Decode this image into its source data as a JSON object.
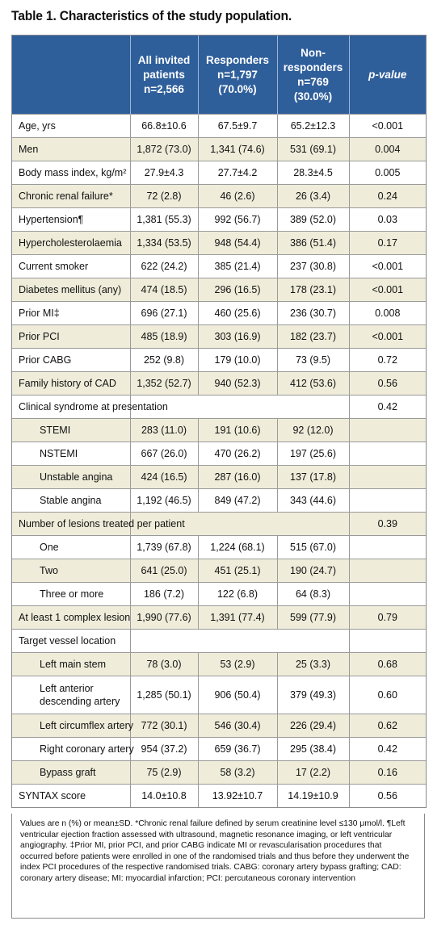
{
  "title": "Table 1. Characteristics of the study population.",
  "header": {
    "col0": "",
    "col1": [
      "All invited",
      "patients",
      "n=2,566"
    ],
    "col2": [
      "Responders",
      "n=1,797",
      "(70.0%)"
    ],
    "col3": [
      "Non-",
      "responders",
      "n=769",
      "(30.0%)"
    ],
    "col4": "p-value"
  },
  "rows": [
    {
      "label": "Age, yrs",
      "all": "66.8±10.6",
      "resp": "67.5±9.7",
      "nonresp": "65.2±12.3",
      "p": "<0.001"
    },
    {
      "label": "Men",
      "all": "1,872 (73.0)",
      "resp": "1,341 (74.6)",
      "nonresp": "531 (69.1)",
      "p": "0.004"
    },
    {
      "label": "Body mass index, kg/m²",
      "all": "27.9±4.3",
      "resp": "27.7±4.2",
      "nonresp": "28.3±4.5",
      "p": "0.005"
    },
    {
      "label": "Chronic renal failure*",
      "all": "72 (2.8)",
      "resp": "46 (2.6)",
      "nonresp": "26 (3.4)",
      "p": "0.24"
    },
    {
      "label": "Hypertension¶",
      "all": "1,381 (55.3)",
      "resp": "992 (56.7)",
      "nonresp": "389 (52.0)",
      "p": "0.03"
    },
    {
      "label": "Hypercholesterolaemia",
      "all": "1,334 (53.5)",
      "resp": "948 (54.4)",
      "nonresp": "386 (51.4)",
      "p": "0.17"
    },
    {
      "label": "Current smoker",
      "all": "622 (24.2)",
      "resp": "385 (21.4)",
      "nonresp": "237 (30.8)",
      "p": "<0.001"
    },
    {
      "label": "Diabetes mellitus (any)",
      "all": "474 (18.5)",
      "resp": "296 (16.5)",
      "nonresp": "178 (23.1)",
      "p": "<0.001"
    },
    {
      "label": "Prior MI‡",
      "all": "696 (27.1)",
      "resp": "460 (25.6)",
      "nonresp": "236 (30.7)",
      "p": "0.008"
    },
    {
      "label": "Prior PCI",
      "all": "485 (18.9)",
      "resp": "303 (16.9)",
      "nonresp": "182 (23.7)",
      "p": "<0.001"
    },
    {
      "label": "Prior CABG",
      "all": "252 (9.8)",
      "resp": "179 (10.0)",
      "nonresp": "73 (9.5)",
      "p": "0.72"
    },
    {
      "label": "Family history of CAD",
      "all": "1,352 (52.7)",
      "resp": "940 (52.3)",
      "nonresp": "412 (53.6)",
      "p": "0.56"
    },
    {
      "label": "Clinical syndrome at presentation",
      "span": true,
      "p": "0.42"
    },
    {
      "label": "STEMI",
      "sub": true,
      "all": "283 (11.0)",
      "resp": "191 (10.6)",
      "nonresp": "92 (12.0)",
      "p": ""
    },
    {
      "label": "NSTEMI",
      "sub": true,
      "all": "667 (26.0)",
      "resp": "470 (26.2)",
      "nonresp": "197 (25.6)",
      "p": ""
    },
    {
      "label": "Unstable angina",
      "sub": true,
      "all": "424 (16.5)",
      "resp": "287 (16.0)",
      "nonresp": "137 (17.8)",
      "p": ""
    },
    {
      "label": "Stable angina",
      "sub": true,
      "all": "1,192 (46.5)",
      "resp": "849 (47.2)",
      "nonresp": "343 (44.6)",
      "p": ""
    },
    {
      "label": "Number of lesions treated per patient",
      "span": true,
      "p": "0.39"
    },
    {
      "label": "One",
      "sub": true,
      "all": "1,739 (67.8)",
      "resp": "1,224 (68.1)",
      "nonresp": "515 (67.0)",
      "p": ""
    },
    {
      "label": "Two",
      "sub": true,
      "all": "641 (25.0)",
      "resp": "451 (25.1)",
      "nonresp": "190 (24.7)",
      "p": ""
    },
    {
      "label": "Three or more",
      "sub": true,
      "all": "186 (7.2)",
      "resp": "122 (6.8)",
      "nonresp": "64 (8.3)",
      "p": ""
    },
    {
      "label": "At least 1 complex lesion",
      "all": "1,990 (77.6)",
      "resp": "1,391 (77.4)",
      "nonresp": "599 (77.9)",
      "p": "0.79"
    },
    {
      "label": "Target vessel location",
      "span": true,
      "p": ""
    },
    {
      "label": "Left main stem",
      "sub": true,
      "all": "78 (3.0)",
      "resp": "53 (2.9)",
      "nonresp": "25 (3.3)",
      "p": "0.68"
    },
    {
      "label": "Left anterior descending artery",
      "sub": true,
      "wrap": true,
      "all": "1,285 (50.1)",
      "resp": "906 (50.4)",
      "nonresp": "379 (49.3)",
      "p": "0.60"
    },
    {
      "label": "Left circumflex artery",
      "sub": true,
      "all": "772 (30.1)",
      "resp": "546 (30.4)",
      "nonresp": "226 (29.4)",
      "p": "0.62"
    },
    {
      "label": "Right coronary artery",
      "sub": true,
      "all": "954 (37.2)",
      "resp": "659 (36.7)",
      "nonresp": "295 (38.4)",
      "p": "0.42"
    },
    {
      "label": "Bypass graft",
      "sub": true,
      "all": "75 (2.9)",
      "resp": "58 (3.2)",
      "nonresp": "17 (2.2)",
      "p": "0.16"
    },
    {
      "label": "SYNTAX score",
      "all": "14.0±10.8",
      "resp": "13.92±10.7",
      "nonresp": "14.19±10.9",
      "p": "0.56"
    }
  ],
  "footnote": "Values are n (%) or mean±SD. *Chronic renal failure defined by serum creatinine level ≤130 μmol/l. ¶Left ventricular ejection fraction assessed with ultrasound, magnetic resonance imaging, or left ventricular angiography. ‡Prior MI, prior PCI, and prior CABG indicate MI or revascularisation procedures that occurred before patients were enrolled in one of the randomised trials and thus before they underwent the index PCI procedures of the respective randomised trials. CABG: coronary artery bypass grafting; CAD: coronary artery disease; MI: myocardial infarction; PCI: percutaneous coronary intervention",
  "colors": {
    "header_bg": "#2f5f9b",
    "stripe_bg": "#efedda",
    "rule": "#9a9a9a"
  }
}
